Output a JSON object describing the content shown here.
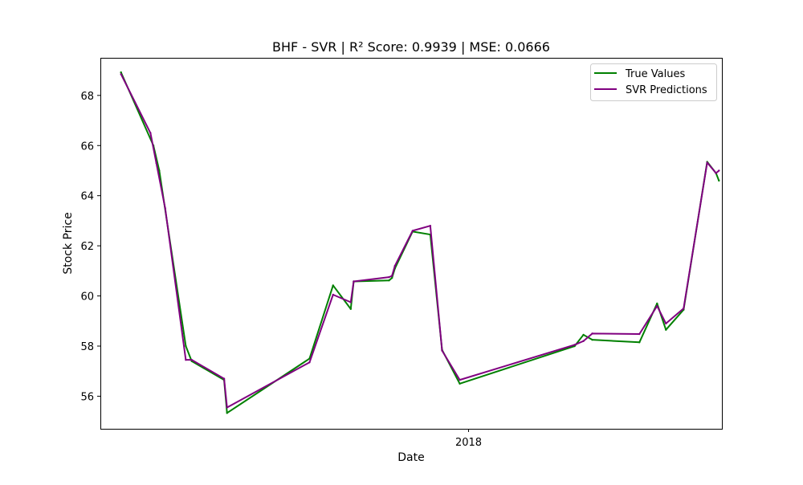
{
  "chart_data": {
    "type": "line",
    "title": "BHF - SVR | R² Score: 0.9939 | MSE: 0.0666",
    "xlabel": "Date",
    "ylabel": "Stock Price",
    "ylim": [
      54.7,
      69.5
    ],
    "xlim": [
      "2017-08-29",
      "2018-03-28"
    ],
    "y_ticks": [
      56,
      58,
      60,
      62,
      64,
      66,
      68
    ],
    "x_ticks": [
      {
        "date": "2018-01-01",
        "label": "2018"
      }
    ],
    "grid": false,
    "legend": "top-right",
    "colors": {
      "true_values": "#008000",
      "svr_predictions": "#800080"
    },
    "series": [
      {
        "name": "True Values",
        "color": "#008000",
        "points": [
          [
            "2017-09-05",
            68.92
          ],
          [
            "2017-09-16",
            66.0
          ],
          [
            "2017-09-18",
            65.0
          ],
          [
            "2017-09-27",
            58.0
          ],
          [
            "2017-09-29",
            57.4
          ],
          [
            "2017-10-10",
            56.65
          ],
          [
            "2017-10-11",
            55.33
          ],
          [
            "2017-11-08",
            57.5
          ],
          [
            "2017-11-16",
            60.42
          ],
          [
            "2017-11-22",
            59.48
          ],
          [
            "2017-11-23",
            60.58
          ],
          [
            "2017-12-05",
            60.62
          ],
          [
            "2017-12-06",
            60.72
          ],
          [
            "2017-12-07",
            61.1
          ],
          [
            "2017-12-13",
            62.57
          ],
          [
            "2017-12-19",
            62.45
          ],
          [
            "2017-12-23",
            57.85
          ],
          [
            "2017-12-29",
            56.5
          ],
          [
            "2018-02-06",
            58.0
          ],
          [
            "2018-02-09",
            58.45
          ],
          [
            "2018-02-12",
            58.25
          ],
          [
            "2018-02-28",
            58.15
          ],
          [
            "2018-03-06",
            59.7
          ],
          [
            "2018-03-09",
            58.65
          ],
          [
            "2018-03-15",
            59.45
          ],
          [
            "2018-03-23",
            65.35
          ],
          [
            "2018-03-26",
            64.9
          ],
          [
            "2018-03-27",
            64.6
          ]
        ]
      },
      {
        "name": "SVR Predictions",
        "color": "#800080",
        "points": [
          [
            "2017-09-05",
            68.85
          ],
          [
            "2017-09-15",
            66.5
          ],
          [
            "2017-09-17",
            65.3
          ],
          [
            "2017-09-20",
            63.5
          ],
          [
            "2017-09-27",
            57.45
          ],
          [
            "2017-09-29",
            57.45
          ],
          [
            "2017-10-10",
            56.7
          ],
          [
            "2017-10-11",
            55.55
          ],
          [
            "2017-11-08",
            57.35
          ],
          [
            "2017-11-16",
            60.05
          ],
          [
            "2017-11-22",
            59.75
          ],
          [
            "2017-11-23",
            60.58
          ],
          [
            "2017-12-05",
            60.75
          ],
          [
            "2017-12-06",
            60.8
          ],
          [
            "2017-12-07",
            61.2
          ],
          [
            "2017-12-13",
            62.6
          ],
          [
            "2017-12-19",
            62.8
          ],
          [
            "2017-12-23",
            57.82
          ],
          [
            "2017-12-29",
            56.65
          ],
          [
            "2018-02-06",
            58.05
          ],
          [
            "2018-02-09",
            58.2
          ],
          [
            "2018-02-12",
            58.5
          ],
          [
            "2018-02-28",
            58.48
          ],
          [
            "2018-03-06",
            59.6
          ],
          [
            "2018-03-09",
            58.9
          ],
          [
            "2018-03-15",
            59.5
          ],
          [
            "2018-03-23",
            65.32
          ],
          [
            "2018-03-26",
            64.9
          ],
          [
            "2018-03-27",
            65.0
          ]
        ]
      }
    ]
  }
}
